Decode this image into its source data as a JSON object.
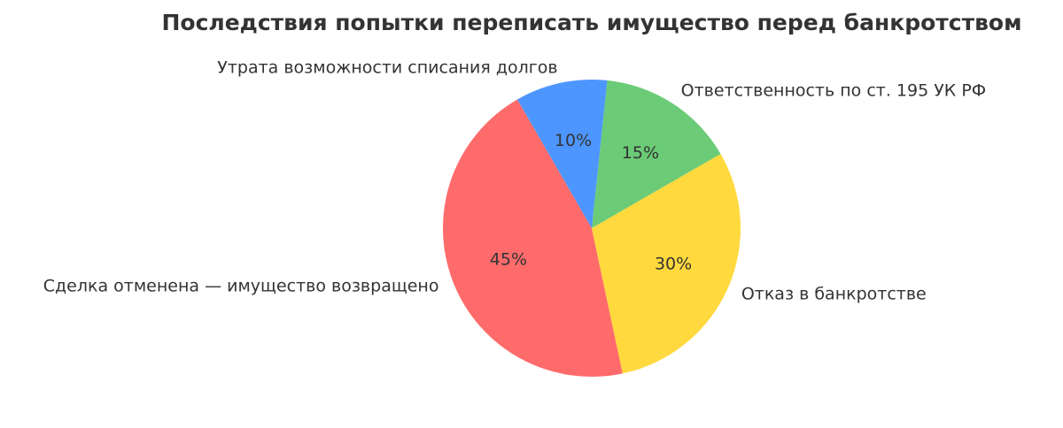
{
  "chart_data": {
    "type": "pie",
    "title": "Последствия попытки переписать имущество перед банкротством",
    "categories": [
      "Сделка отменена — имущество возвращено",
      "Отказ в банкротстве",
      "Ответственность по ст. 195 УК РФ",
      "Утрата возможности списания долгов"
    ],
    "values": [
      45,
      30,
      15,
      10
    ],
    "value_labels": [
      "45%",
      "30%",
      "15%",
      "10%"
    ],
    "colors": [
      "#ff6b6b",
      "#ffd93d",
      "#6bcb77",
      "#4d96ff"
    ]
  }
}
